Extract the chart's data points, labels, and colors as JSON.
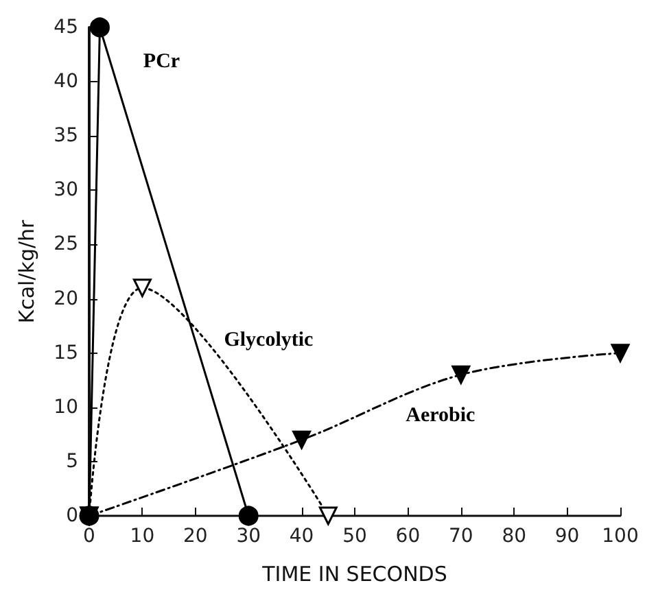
{
  "chart_data": {
    "type": "line",
    "xlabel": "TIME IN SECONDS",
    "ylabel": "Kcal/kg/hr",
    "xlim": [
      0,
      100
    ],
    "xticks": [
      0,
      10,
      20,
      30,
      40,
      50,
      60,
      70,
      80,
      90,
      100
    ],
    "ylim": [
      0,
      45
    ],
    "yticks": [
      0,
      5,
      10,
      15,
      20,
      25,
      30,
      35,
      40,
      45
    ],
    "grid": false,
    "legend": false,
    "series": [
      {
        "name": "PCr",
        "color": "#000000",
        "x": [
          0,
          2,
          30
        ],
        "values": [
          0,
          45,
          0
        ],
        "marker": "circle",
        "line_style": "solid"
      },
      {
        "name": "Glycolytic",
        "color": "#000000",
        "x": [
          0,
          10,
          45
        ],
        "values": [
          0,
          21,
          0
        ],
        "marker": "triangle",
        "line_style": "dotted"
      },
      {
        "name": "Aerobic",
        "color": "#000000",
        "x": [
          0,
          40,
          70,
          100
        ],
        "values": [
          0,
          7,
          13,
          15
        ],
        "marker": "triangle",
        "line_style": "dashed"
      }
    ]
  }
}
